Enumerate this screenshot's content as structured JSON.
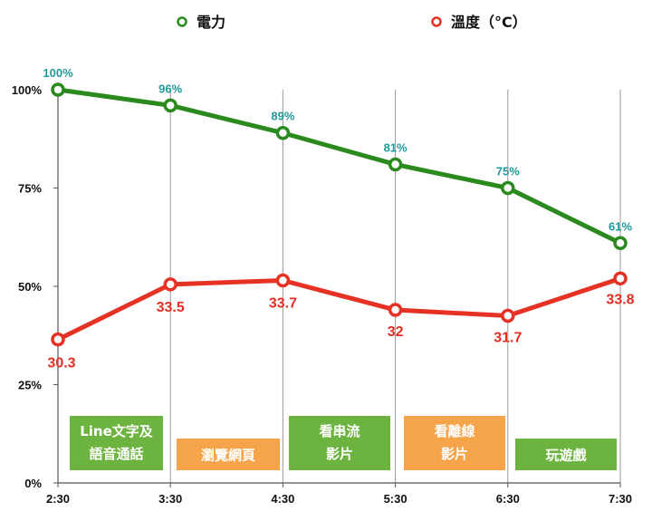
{
  "chart_data": {
    "type": "line",
    "x": [
      "2:30",
      "3:30",
      "4:30",
      "5:30",
      "6:30",
      "7:30"
    ],
    "y_ticks": [
      "0%",
      "25%",
      "50%",
      "75%",
      "100%"
    ],
    "ylim": [
      0,
      100
    ],
    "legend": {
      "placement": "top-center"
    },
    "grid": "vertical",
    "series": [
      {
        "name": "電力",
        "color": "#2b8a1e",
        "values": [
          100,
          96,
          89,
          81,
          75,
          61
        ],
        "labels": [
          "100%",
          "96%",
          "89%",
          "81%",
          "75%",
          "61%"
        ]
      },
      {
        "name": "溫度（°C）",
        "color": "#e53224",
        "values_pct": [
          36.5,
          50.5,
          51.5,
          44,
          42.5,
          52
        ],
        "labels": [
          "30.3",
          "33.5",
          "33.7",
          "32",
          "31.7",
          "33.8"
        ]
      }
    ],
    "activities": [
      {
        "lines": [
          "Line文字及",
          "語音通話"
        ],
        "color": "#6db33f"
      },
      {
        "lines": [
          "瀏覽網頁"
        ],
        "color": "#f5a44a"
      },
      {
        "lines": [
          "看串流",
          "影片"
        ],
        "color": "#6db33f"
      },
      {
        "lines": [
          "看離線",
          "影片"
        ],
        "color": "#f5a44a"
      },
      {
        "lines": [
          "玩遊戲"
        ],
        "color": "#6db33f"
      }
    ]
  }
}
